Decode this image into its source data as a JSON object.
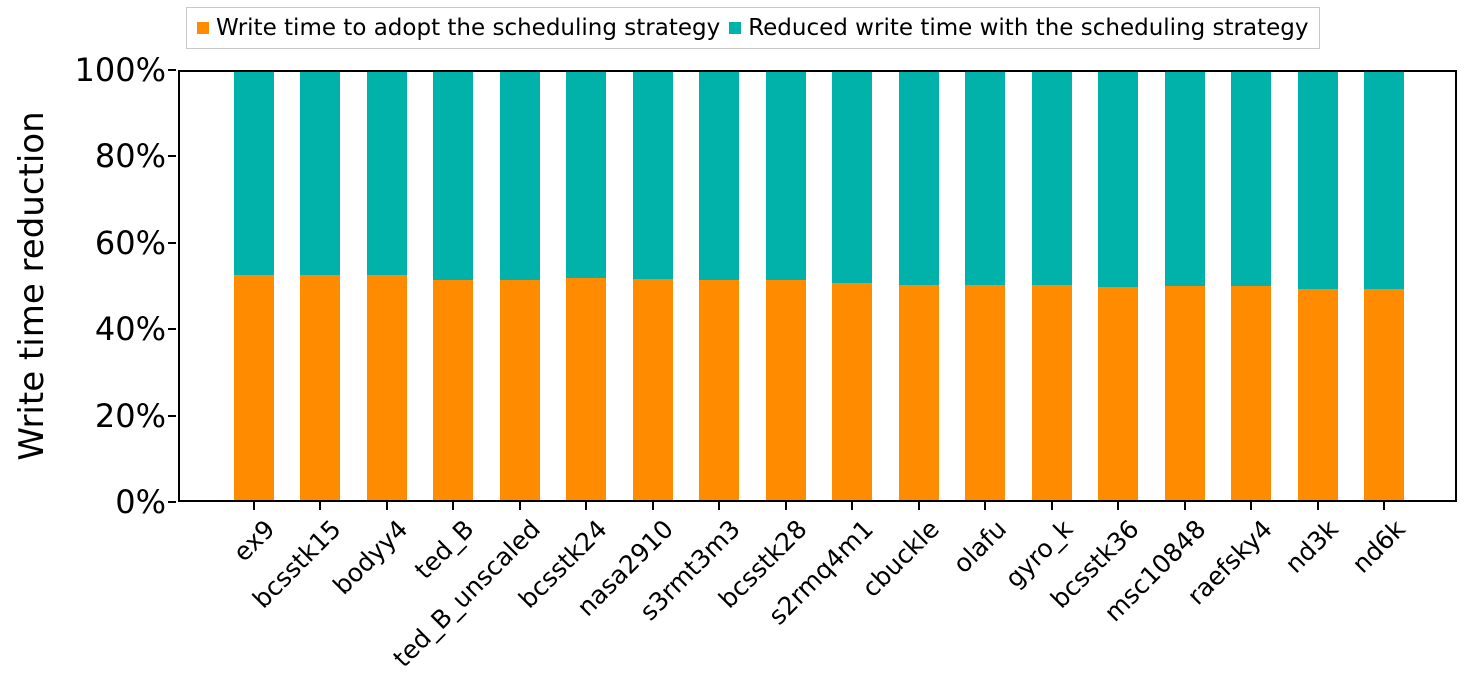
{
  "chart_data": {
    "type": "bar",
    "stacked": true,
    "title": "",
    "xlabel": "",
    "ylabel": "Write time reduction",
    "ylim": [
      0,
      100
    ],
    "yticks": [
      "0%",
      "20%",
      "40%",
      "60%",
      "80%",
      "100%"
    ],
    "grid": false,
    "legend_position": "top",
    "x_tick_rotation": 45,
    "categories": [
      "ex9",
      "bcsstk15",
      "bodyy4",
      "ted_B",
      "ted_B_unscaled",
      "bcsstk24",
      "nasa2910",
      "s3rmt3m3",
      "bcsstk28",
      "s2rmq4m1",
      "cbuckle",
      "olafu",
      "gyro_k",
      "bcsstk36",
      "msc10848",
      "raefsky4",
      "nd3k",
      "nd6k"
    ],
    "series": [
      {
        "name": "Write time to adopt the scheduling strategy",
        "color": "#FF8C00",
        "values": [
          52.5,
          52.5,
          52.6,
          51.3,
          51.3,
          51.9,
          51.6,
          51.4,
          51.4,
          50.7,
          50.3,
          50.3,
          50.3,
          49.8,
          50.0,
          50.0,
          49.4,
          49.4
        ]
      },
      {
        "name": "Reduced write time with the scheduling strategy",
        "color": "#00B2AA",
        "values": [
          47.5,
          47.5,
          47.4,
          48.7,
          48.7,
          48.1,
          48.4,
          48.6,
          48.6,
          49.3,
          49.7,
          49.7,
          49.7,
          50.2,
          50.0,
          50.0,
          50.6,
          50.6
        ]
      }
    ],
    "axis_color": "#000000",
    "legend_border_color": "#c9c9c9",
    "background_color": "#ffffff"
  }
}
